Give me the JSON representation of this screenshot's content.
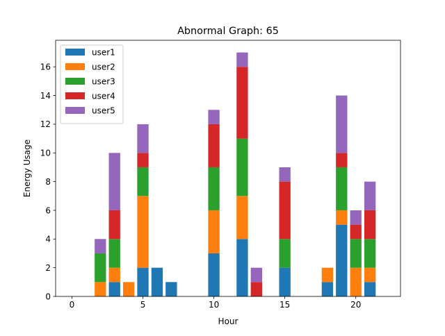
{
  "chart_data": {
    "type": "bar",
    "stacked": true,
    "title": "Abnormal Graph: 65",
    "xlabel": "Hour",
    "ylabel": "Energy Usage",
    "xlim": [
      -1.15,
      23.15
    ],
    "ylim": [
      0,
      17.85
    ],
    "xticks": [
      0,
      5,
      10,
      15,
      20
    ],
    "yticks": [
      0,
      2,
      4,
      6,
      8,
      10,
      12,
      14,
      16
    ],
    "legend_position": "top-left",
    "grid": false,
    "x": [
      0,
      1,
      2,
      3,
      4,
      5,
      6,
      7,
      8,
      9,
      10,
      11,
      12,
      13,
      14,
      15,
      16,
      17,
      18,
      19,
      20,
      21,
      22
    ],
    "series": [
      {
        "name": "user1",
        "color": "#1f77b4",
        "values": [
          0,
          0,
          0,
          1,
          0,
          2,
          2,
          1,
          0,
          0,
          3,
          0,
          4,
          0,
          0,
          2,
          0,
          0,
          1,
          5,
          0,
          1,
          0
        ]
      },
      {
        "name": "user2",
        "color": "#ff7f0e",
        "values": [
          0,
          0,
          1,
          1,
          1,
          5,
          0,
          0,
          0,
          0,
          3,
          0,
          3,
          0,
          0,
          0,
          0,
          0,
          1,
          1,
          2,
          1,
          0
        ]
      },
      {
        "name": "user3",
        "color": "#2ca02c",
        "values": [
          0,
          0,
          2,
          2,
          0,
          2,
          0,
          0,
          0,
          0,
          3,
          0,
          4,
          0,
          0,
          2,
          0,
          0,
          0,
          3,
          2,
          2,
          0
        ]
      },
      {
        "name": "user4",
        "color": "#d62728",
        "values": [
          0,
          0,
          0,
          2,
          0,
          1,
          0,
          0,
          0,
          0,
          3,
          0,
          5,
          1,
          0,
          4,
          0,
          0,
          0,
          1,
          1,
          2,
          0
        ]
      },
      {
        "name": "user5",
        "color": "#9467bd",
        "values": [
          0,
          0,
          1,
          4,
          0,
          2,
          0,
          0,
          0,
          0,
          1,
          0,
          1,
          1,
          0,
          1,
          0,
          0,
          0,
          4,
          1,
          2,
          0
        ]
      }
    ]
  }
}
